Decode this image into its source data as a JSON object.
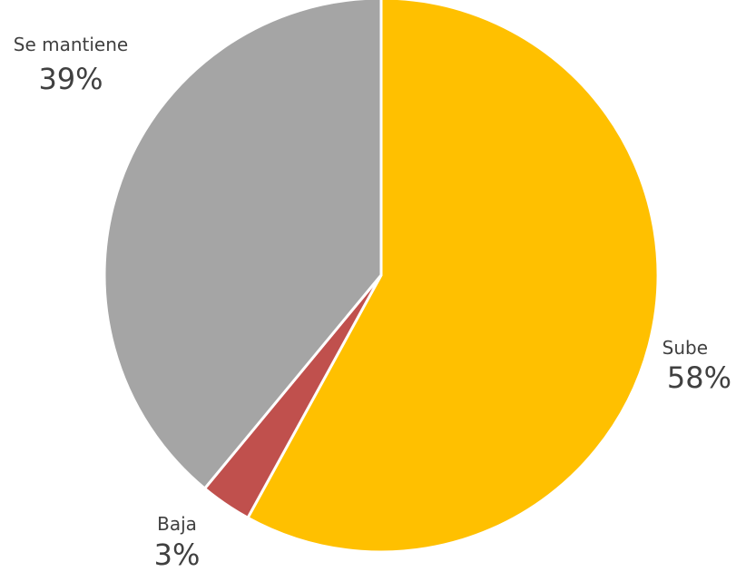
{
  "chart_data": {
    "type": "pie",
    "title": "",
    "slices": [
      {
        "label": "Sube",
        "value": 58,
        "percent_label": "58%",
        "color": "#FFC000"
      },
      {
        "label": "Baja",
        "value": 3,
        "percent_label": "3%",
        "color": "#C0504D"
      },
      {
        "label": "Se mantiene",
        "value": 39,
        "percent_label": "39%",
        "color": "#A5A5A5"
      }
    ],
    "start_angle": "12 o'clock",
    "direction": "clockwise",
    "slice_border_color": "#ffffff",
    "legend": "none",
    "data_labels": "outside"
  }
}
